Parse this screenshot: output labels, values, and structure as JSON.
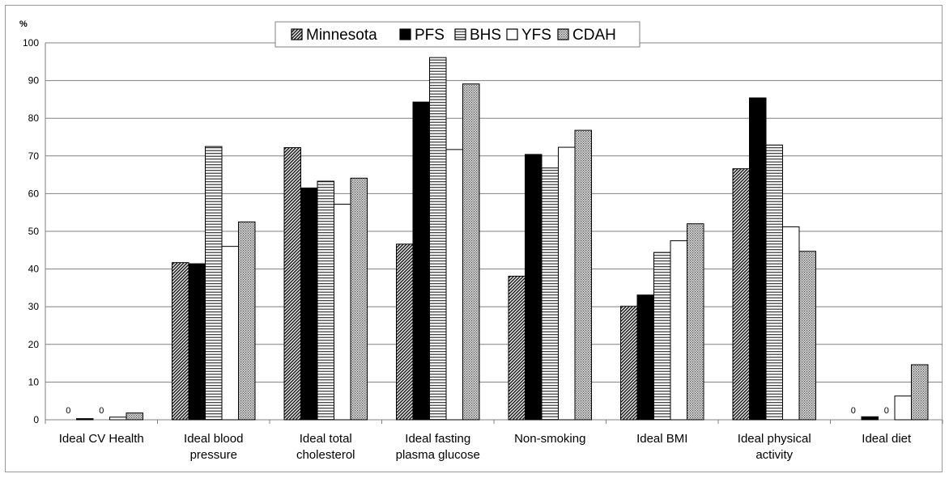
{
  "chart_data": {
    "type": "bar",
    "unit_label": "%",
    "ylim": [
      0,
      100
    ],
    "yticks": [
      0,
      10,
      20,
      30,
      40,
      50,
      60,
      70,
      80,
      90,
      100
    ],
    "grid": true,
    "legend_position": "top-center",
    "categories": [
      [
        "Ideal CV Health"
      ],
      [
        "Ideal blood",
        "pressure"
      ],
      [
        "Ideal total",
        "cholesterol"
      ],
      [
        "Ideal fasting",
        "plasma glucose"
      ],
      [
        "Non-smoking"
      ],
      [
        "Ideal BMI"
      ],
      [
        "Ideal physical",
        "activity"
      ],
      [
        "Ideal diet"
      ]
    ],
    "series": [
      {
        "name": "Minnesota",
        "pattern": "diagonal",
        "values": [
          0,
          41.7,
          72.2,
          46.6,
          38.1,
          30.1,
          66.6,
          0
        ]
      },
      {
        "name": "PFS",
        "pattern": "solid",
        "values": [
          0.3,
          41.4,
          61.5,
          84.3,
          70.4,
          33.1,
          85.4,
          0.8
        ]
      },
      {
        "name": "BHS",
        "pattern": "horizontal",
        "values": [
          0,
          72.5,
          63.3,
          96.1,
          66.8,
          44.4,
          72.9,
          0
        ]
      },
      {
        "name": "YFS",
        "pattern": "white",
        "values": [
          0.7,
          46,
          57.2,
          71.7,
          72.3,
          47.5,
          51.2,
          6.3
        ]
      },
      {
        "name": "CDAH",
        "pattern": "dots",
        "values": [
          1.8,
          52.5,
          64.1,
          89.1,
          76.8,
          52,
          44.7,
          14.6
        ]
      }
    ],
    "zero_labels": [
      {
        "category": 0,
        "series": 0,
        "text": "0"
      },
      {
        "category": 0,
        "series": 2,
        "text": "0"
      },
      {
        "category": 7,
        "series": 0,
        "text": "0"
      },
      {
        "category": 7,
        "series": 2,
        "text": "0"
      }
    ]
  }
}
